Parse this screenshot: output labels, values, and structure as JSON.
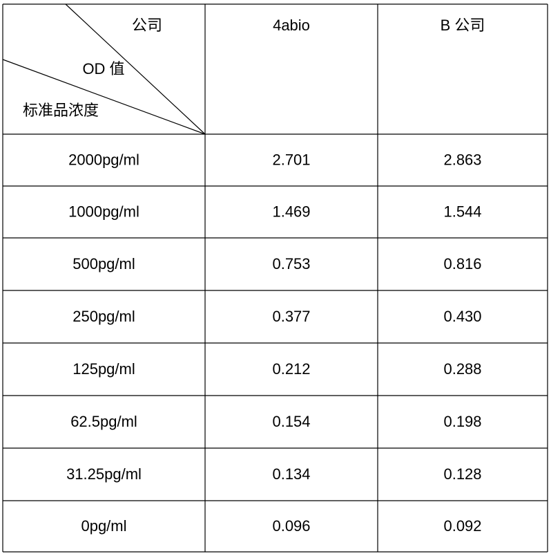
{
  "table": {
    "header": {
      "corner": [
        "公司",
        "OD 值",
        "标准品浓度"
      ],
      "columns": [
        "4abio",
        "B 公司"
      ]
    },
    "rows": [
      [
        "2000pg/ml",
        "2.701",
        "2.863"
      ],
      [
        "1000pg/ml",
        "1.469",
        "1.544"
      ],
      [
        "500pg/ml",
        "0.753",
        "0.816"
      ],
      [
        "250pg/ml",
        "0.377",
        "0.430"
      ],
      [
        "125pg/ml",
        "0.212",
        "0.288"
      ],
      [
        "62.5pg/ml",
        "0.154",
        "0.198"
      ],
      [
        "31.25pg/ml",
        "0.134",
        "0.128"
      ],
      [
        "0pg/ml",
        "0.096",
        "0.092"
      ]
    ]
  }
}
